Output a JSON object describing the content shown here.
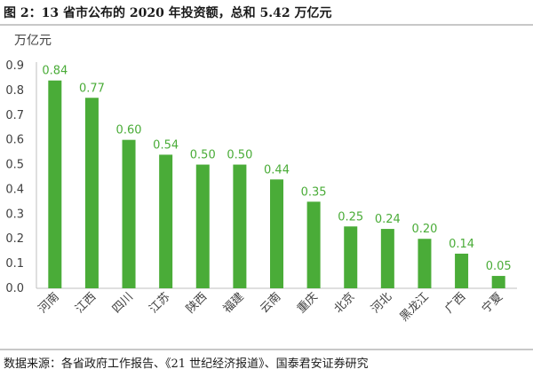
{
  "figure_title": "图 2：13 省市公布的 2020 年投资额，总和 5.42 万亿元",
  "source_note": "数据来源：各省政府工作报告、《21 世纪经济报道》、国泰君安证券研究",
  "colors": {
    "bar": "#4aac38",
    "label": "#4aac38",
    "axis": "#bfbfbf",
    "text": "#404040"
  },
  "chart_data": {
    "type": "bar",
    "title": "",
    "ylabel": "万亿元",
    "xlabel": "",
    "ylim": [
      0,
      0.9
    ],
    "yticks": [
      "0.0",
      "0.1",
      "0.2",
      "0.3",
      "0.4",
      "0.5",
      "0.6",
      "0.7",
      "0.8",
      "0.9"
    ],
    "grid": false,
    "categories": [
      "河南",
      "江西",
      "四川",
      "江苏",
      "陕西",
      "福建",
      "云南",
      "重庆",
      "北京",
      "河北",
      "黑龙江",
      "广西",
      "宁夏"
    ],
    "values": [
      0.84,
      0.77,
      0.6,
      0.54,
      0.5,
      0.5,
      0.44,
      0.35,
      0.25,
      0.24,
      0.2,
      0.14,
      0.05
    ],
    "value_labels": [
      "0.84",
      "0.77",
      "0.60",
      "0.54",
      "0.50",
      "0.50",
      "0.44",
      "0.35",
      "0.25",
      "0.24",
      "0.20",
      "0.14",
      "0.05"
    ]
  }
}
